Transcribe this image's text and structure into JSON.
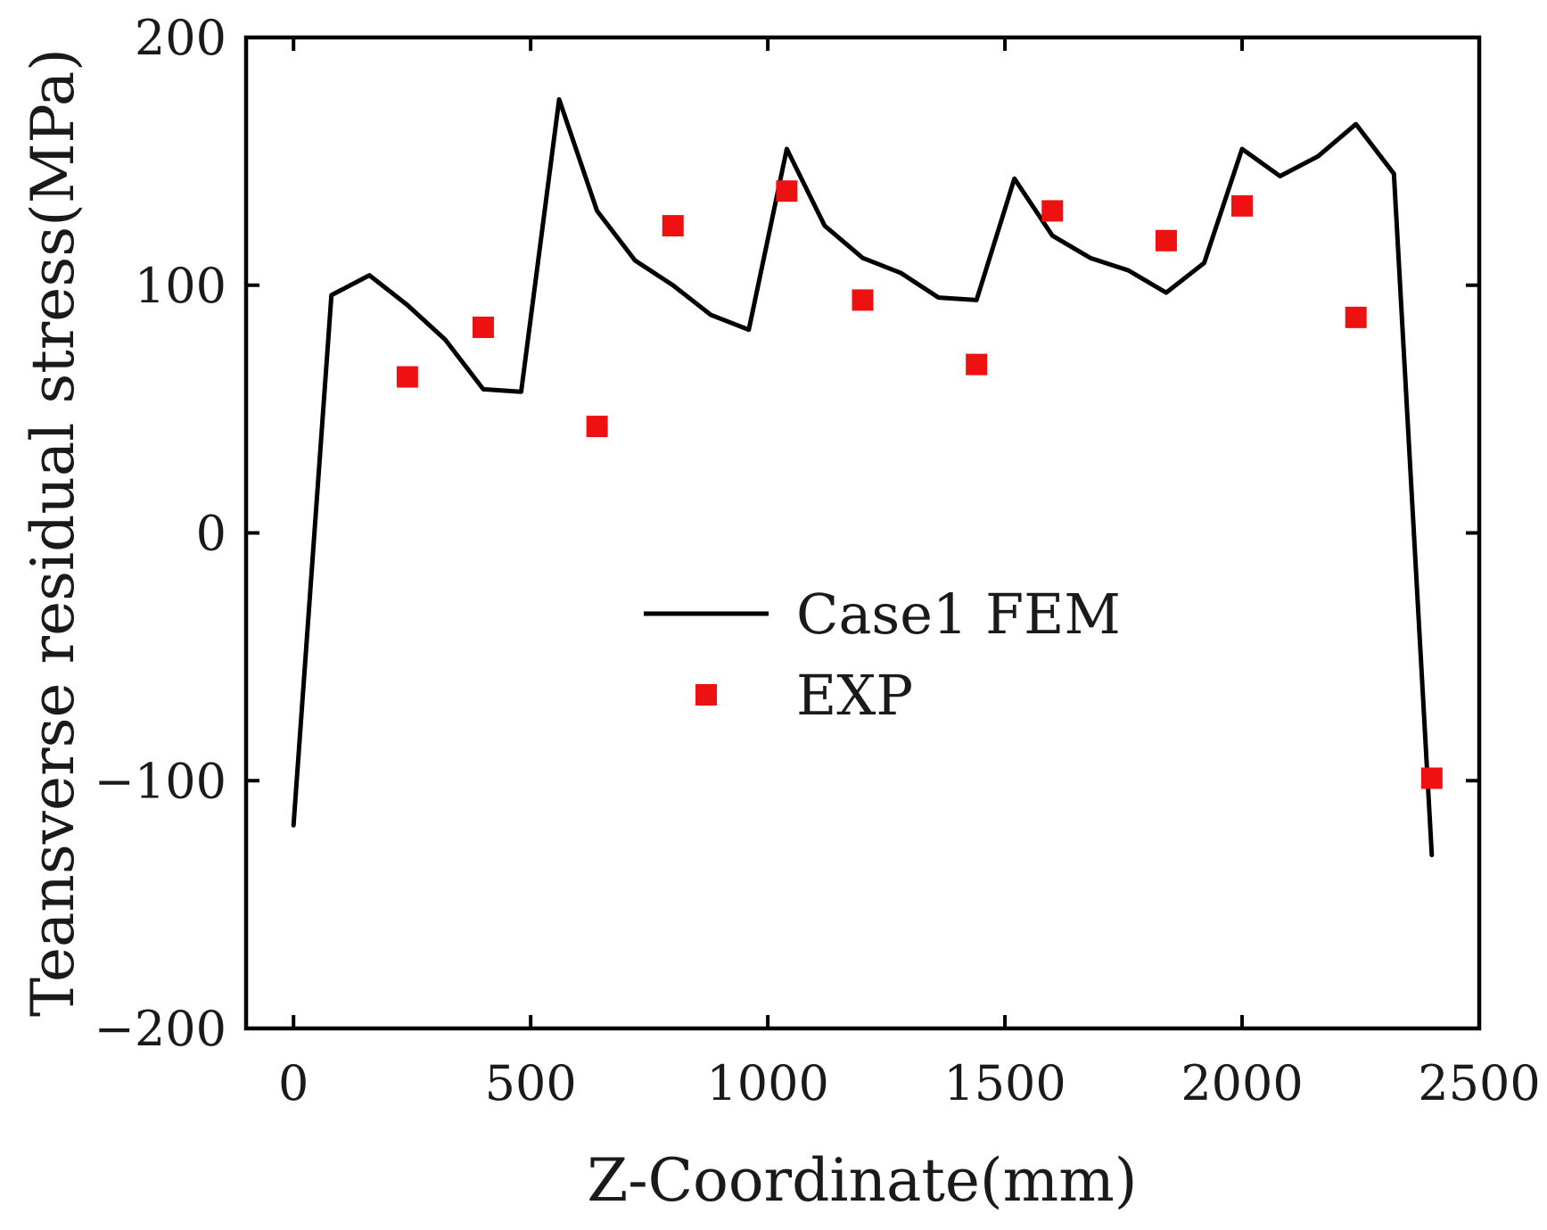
{
  "chart_data": {
    "type": "line",
    "title": "",
    "xlabel": "Z-Coordinate(mm)",
    "ylabel": "Teansverse residual stress(MPa)",
    "xlim": [
      -100,
      2500
    ],
    "ylim": [
      -200,
      200
    ],
    "x_ticks": [
      0,
      500,
      1000,
      1500,
      2000,
      2500
    ],
    "y_ticks": [
      -200,
      -100,
      0,
      100,
      200
    ],
    "x_tick_labels": [
      "0",
      "500",
      "1000",
      "1500",
      "2000",
      "2500"
    ],
    "y_tick_labels": [
      "−200",
      "−100",
      "0",
      "100",
      "200"
    ],
    "grid": false,
    "legend_position": "center",
    "series": [
      {
        "name": "Case1 FEM",
        "kind": "line",
        "color": "#000000",
        "points": [
          [
            0,
            -118
          ],
          [
            80,
            96
          ],
          [
            160,
            104
          ],
          [
            240,
            92
          ],
          [
            320,
            78
          ],
          [
            400,
            58
          ],
          [
            480,
            57
          ],
          [
            560,
            175
          ],
          [
            640,
            130
          ],
          [
            720,
            110
          ],
          [
            800,
            100
          ],
          [
            880,
            88
          ],
          [
            960,
            82
          ],
          [
            1040,
            155
          ],
          [
            1120,
            124
          ],
          [
            1200,
            111
          ],
          [
            1280,
            105
          ],
          [
            1360,
            95
          ],
          [
            1440,
            94
          ],
          [
            1520,
            143
          ],
          [
            1600,
            120
          ],
          [
            1680,
            111
          ],
          [
            1760,
            106
          ],
          [
            1840,
            97
          ],
          [
            1920,
            109
          ],
          [
            2000,
            155
          ],
          [
            2080,
            144
          ],
          [
            2160,
            152
          ],
          [
            2240,
            165
          ],
          [
            2320,
            145
          ],
          [
            2400,
            -130
          ]
        ]
      },
      {
        "name": "EXP",
        "kind": "scatter",
        "color": "#ee1111",
        "marker": "square",
        "points": [
          [
            240,
            63
          ],
          [
            400,
            83
          ],
          [
            640,
            43
          ],
          [
            800,
            124
          ],
          [
            1040,
            138
          ],
          [
            1200,
            94
          ],
          [
            1440,
            68
          ],
          [
            1600,
            130
          ],
          [
            1840,
            118
          ],
          [
            2000,
            132
          ],
          [
            2240,
            87
          ],
          [
            2400,
            -99
          ]
        ]
      }
    ]
  }
}
